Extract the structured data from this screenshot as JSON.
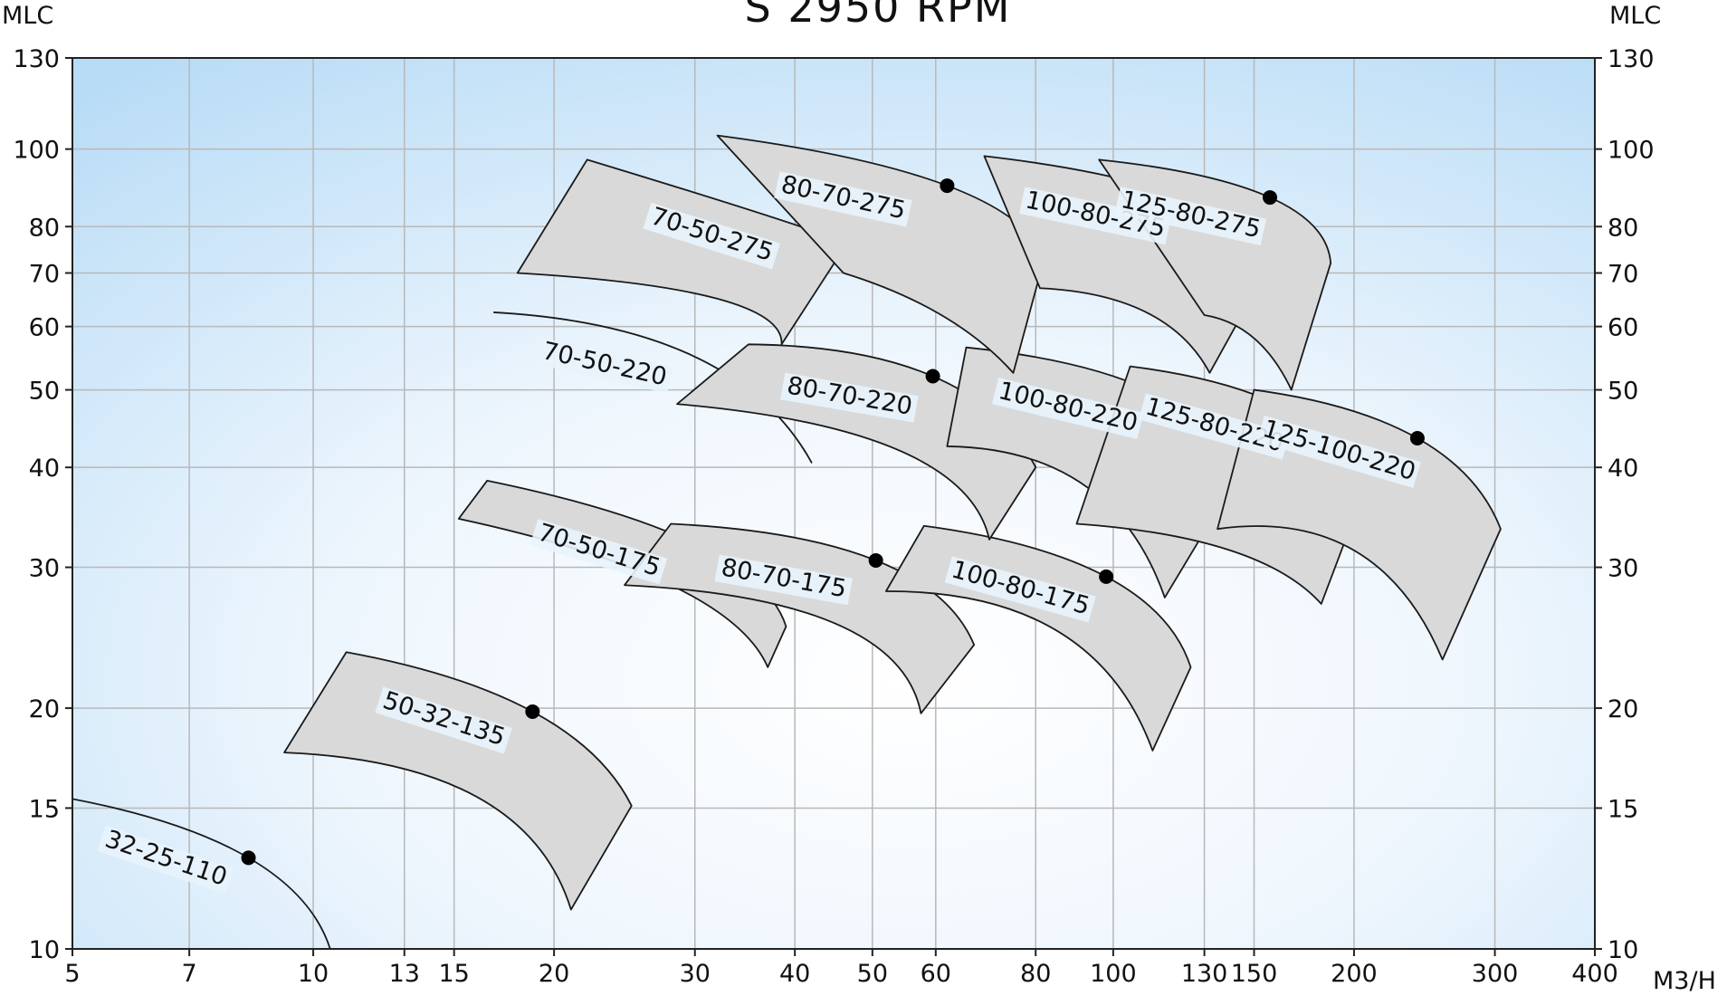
{
  "chart_data": {
    "type": "line",
    "title": "S 2950 RPM",
    "xlabel": "M3/H",
    "ylabel": "MLC",
    "ylabel_right": "MLC",
    "x_scale": "log",
    "y_scale": "log",
    "xlim": [
      5,
      400
    ],
    "ylim": [
      10,
      130
    ],
    "grid": true,
    "x_ticks": [
      5,
      7,
      10,
      13,
      15,
      20,
      30,
      40,
      50,
      60,
      80,
      100,
      130,
      150,
      200,
      300,
      400
    ],
    "x_tick_labels": [
      "5",
      "7",
      "10",
      "13",
      "15",
      "20",
      "30",
      "40",
      "50",
      "60",
      "80",
      "100",
      "130",
      "150",
      "200",
      "300",
      "400"
    ],
    "y_ticks": [
      10,
      15,
      20,
      30,
      40,
      50,
      60,
      70,
      80,
      100,
      130
    ],
    "y_tick_labels": [
      "10",
      "15",
      "20",
      "30",
      "40",
      "50",
      "60",
      "70",
      "80",
      "100",
      "130"
    ],
    "series": [
      {
        "name": "32-25-110",
        "kind": "curve",
        "curve": [
          [
            5,
            15.4
          ],
          [
            8.3,
            13.0
          ],
          [
            10.5,
            10.0
          ]
        ],
        "bep": [
          8.3,
          13.0
        ]
      },
      {
        "name": "50-32-135",
        "kind": "area",
        "upper": [
          [
            11,
            23.5
          ],
          [
            18.8,
            19.8
          ],
          [
            25,
            15.1
          ]
        ],
        "lower": [
          [
            9.2,
            17.6
          ],
          [
            16,
            15.5
          ],
          [
            21,
            11.2
          ]
        ],
        "bep": [
          18.8,
          19.8
        ]
      },
      {
        "name": "70-50-175",
        "kind": "area",
        "upper": [
          [
            16.5,
            38.5
          ],
          [
            30.2,
            32.0
          ],
          [
            39,
            25.3
          ]
        ],
        "lower": [
          [
            15.2,
            34.5
          ],
          [
            28,
            28.5
          ],
          [
            37,
            22.5
          ]
        ],
        "bep": [
          30.2,
          32.0
        ]
      },
      {
        "name": "80-70-175",
        "kind": "area",
        "upper": [
          [
            28,
            34.0
          ],
          [
            50.5,
            30.6
          ],
          [
            67,
            24.0
          ]
        ],
        "lower": [
          [
            24.5,
            28.5
          ],
          [
            45,
            25.5
          ],
          [
            57.5,
            19.7
          ]
        ],
        "bep": [
          50.5,
          30.6
        ]
      },
      {
        "name": "100-80-175",
        "kind": "area",
        "upper": [
          [
            58,
            33.8
          ],
          [
            98,
            29.2
          ],
          [
            125,
            22.5
          ]
        ],
        "lower": [
          [
            52,
            28.0
          ],
          [
            85,
            25.0
          ],
          [
            112,
            17.7
          ]
        ],
        "bep": [
          98,
          29.2
        ]
      },
      {
        "name": "70-50-220",
        "kind": "curve",
        "curve": [
          [
            16.8,
            62.5
          ],
          [
            30,
            55.0
          ],
          [
            42,
            40.5
          ]
        ],
        "bep": null
      },
      {
        "name": "80-70-220",
        "kind": "area",
        "upper": [
          [
            35,
            57.0
          ],
          [
            59.5,
            52.0
          ],
          [
            80,
            40.0
          ]
        ],
        "lower": [
          [
            28.5,
            48.0
          ],
          [
            54,
            42.0
          ],
          [
            70,
            32.5
          ]
        ],
        "bep": [
          59.5,
          52.0
        ]
      },
      {
        "name": "100-80-220",
        "kind": "area",
        "upper": [
          [
            65.5,
            56.5
          ],
          [
            113,
            49.5
          ],
          [
            142,
            38.5
          ]
        ],
        "lower": [
          [
            62,
            42.5
          ],
          [
            92,
            38.0
          ],
          [
            116,
            27.5
          ]
        ],
        "bep": [
          113,
          49.5
        ]
      },
      {
        "name": "125-80-220",
        "kind": "area",
        "upper": [
          [
            105,
            53.5
          ],
          [
            167,
            47.0
          ],
          [
            205,
            37.0
          ]
        ],
        "lower": [
          [
            90,
            34.0
          ],
          [
            140,
            31.5
          ],
          [
            182,
            27.0
          ]
        ],
        "bep": [
          167,
          47.0
        ]
      },
      {
        "name": "125-100-220",
        "kind": "area",
        "upper": [
          [
            150,
            50.0
          ],
          [
            240,
            43.5
          ],
          [
            305,
            33.5
          ]
        ],
        "lower": [
          [
            135,
            33.5
          ],
          [
            200,
            31.5
          ],
          [
            258,
            23.0
          ]
        ],
        "bep": [
          240,
          43.5
        ]
      },
      {
        "name": "70-50-275",
        "kind": "area",
        "upper": [
          [
            22,
            97.0
          ],
          [
            43,
            78.5
          ],
          [
            46,
            75.0
          ]
        ],
        "lower": [
          [
            18,
            70.0
          ],
          [
            32,
            65.0
          ],
          [
            38.5,
            57.0
          ]
        ],
        "bep": [
          43,
          78.5
        ]
      },
      {
        "name": "80-70-275",
        "kind": "area",
        "upper": [
          [
            32,
            104.0
          ],
          [
            62,
            90.0
          ],
          [
            82,
            73.0
          ]
        ],
        "lower": [
          [
            46,
            70.0
          ],
          [
            61,
            62.0
          ],
          [
            75,
            52.5
          ]
        ],
        "bep": [
          62,
          90.0
        ]
      },
      {
        "name": "100-80-275",
        "kind": "area",
        "upper": [
          [
            69,
            98.0
          ],
          [
            124,
            86.5
          ],
          [
            156,
            71.0
          ]
        ],
        "lower": [
          [
            81,
            67.0
          ],
          [
            110,
            62.5
          ],
          [
            132,
            52.5
          ]
        ],
        "bep": [
          124,
          86.5
        ]
      },
      {
        "name": "125-80-275",
        "kind": "area",
        "upper": [
          [
            96,
            97.0
          ],
          [
            157,
            87.0
          ],
          [
            187,
            72.0
          ]
        ],
        "lower": [
          [
            130,
            62.0
          ],
          [
            150,
            58.0
          ],
          [
            167,
            50.0
          ]
        ],
        "bep": [
          157,
          87.0
        ]
      }
    ]
  }
}
